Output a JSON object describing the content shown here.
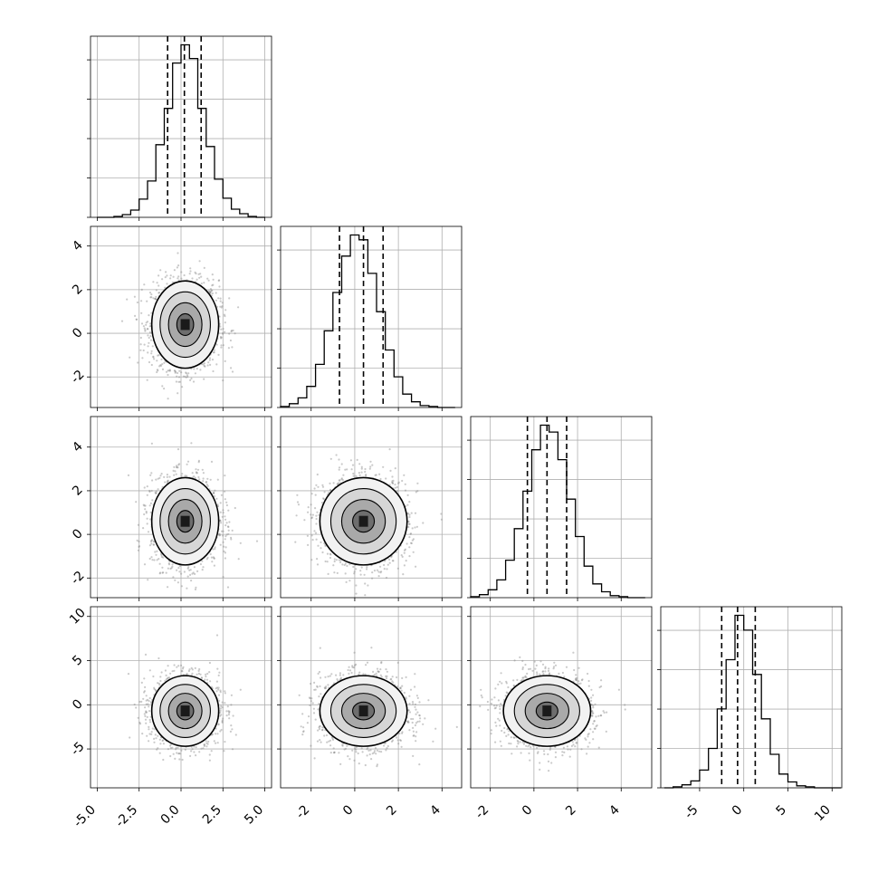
{
  "chart_data": {
    "type": "corner",
    "parameters": 4,
    "show_grid": true,
    "diag_quantile_lines": "dashed",
    "scatter_point_color": "#8a8a8a",
    "line_color": "#000000",
    "axes": [
      {
        "index": 0,
        "range": [
          -5.4,
          5.4
        ],
        "ticks": [
          "-5.0",
          "-2.5",
          "0.0",
          "2.5",
          "5.0"
        ],
        "tick_values": [
          -5,
          -2.5,
          0,
          2.5,
          5
        ]
      },
      {
        "index": 1,
        "range": [
          -3.4,
          4.9
        ],
        "ticks": [
          "-2",
          "0",
          "2",
          "4"
        ],
        "tick_values": [
          -2,
          0,
          2,
          4
        ]
      },
      {
        "index": 2,
        "range": [
          -2.9,
          5.4
        ],
        "ticks": [
          "-2",
          "0",
          "2",
          "4"
        ],
        "tick_values": [
          -2,
          0,
          2,
          4
        ]
      },
      {
        "index": 3,
        "range": [
          -9.4,
          11.1
        ],
        "ticks": [
          "-5",
          "0",
          "5",
          "10"
        ],
        "tick_values": [
          -5,
          0,
          5,
          10
        ]
      }
    ],
    "diag": [
      {
        "param": 0,
        "mean": 0.25,
        "sd": 1.0,
        "quantiles": [
          -0.8,
          0.2,
          1.2
        ],
        "hist_bins": [
          -5.0,
          -4.5,
          -4.0,
          -3.5,
          -3.0,
          -2.5,
          -2.0,
          -1.5,
          -1.0,
          -0.5,
          0.0,
          0.5,
          1.0,
          1.5,
          2.0,
          2.5,
          3.0,
          3.5,
          4.0,
          4.5,
          5.0
        ],
        "hist_counts": [
          0,
          0,
          1,
          3,
          8,
          20,
          40,
          80,
          120,
          170,
          190,
          175,
          120,
          78,
          42,
          21,
          9,
          4,
          1,
          0
        ]
      },
      {
        "param": 1,
        "mean": 0.4,
        "sd": 1.0,
        "quantiles": [
          -0.7,
          0.4,
          1.3
        ],
        "hist_bins": [
          -3.4,
          -3.0,
          -2.6,
          -2.2,
          -1.8,
          -1.4,
          -1.0,
          -0.6,
          -0.2,
          0.2,
          0.6,
          1.0,
          1.4,
          1.8,
          2.2,
          2.6,
          3.0,
          3.4,
          3.8,
          4.2,
          4.6
        ],
        "hist_counts": [
          1,
          4,
          10,
          22,
          45,
          80,
          120,
          158,
          180,
          175,
          140,
          100,
          60,
          32,
          14,
          6,
          2,
          1,
          0,
          0
        ]
      },
      {
        "param": 2,
        "mean": 0.6,
        "sd": 1.0,
        "quantiles": [
          -0.3,
          0.6,
          1.5
        ],
        "hist_bins": [
          -2.9,
          -2.5,
          -2.1,
          -1.7,
          -1.3,
          -0.9,
          -0.5,
          -0.1,
          0.3,
          0.7,
          1.1,
          1.5,
          1.9,
          2.3,
          2.7,
          3.1,
          3.5,
          3.9,
          4.3,
          4.7,
          5.1
        ],
        "hist_counts": [
          1,
          3,
          8,
          18,
          38,
          70,
          108,
          150,
          175,
          168,
          140,
          100,
          62,
          32,
          14,
          6,
          2,
          1,
          0,
          0
        ]
      },
      {
        "param": 3,
        "mean": -0.7,
        "sd": 2.0,
        "quantiles": [
          -2.5,
          -0.7,
          1.3
        ],
        "hist_bins": [
          -9.0,
          -8.0,
          -7.0,
          -6.0,
          -5.0,
          -4.0,
          -3.0,
          -2.0,
          -1.0,
          0.0,
          1.0,
          2.0,
          3.0,
          4.0,
          5.0,
          6.0,
          7.0,
          8.0,
          9.0,
          10.0,
          11.0
        ],
        "hist_counts": [
          0,
          1,
          3,
          7,
          18,
          40,
          80,
          130,
          175,
          160,
          115,
          70,
          34,
          14,
          6,
          2,
          1,
          0,
          0,
          0
        ]
      }
    ],
    "pairs": [
      {
        "x": 0,
        "y": 1
      },
      {
        "x": 0,
        "y": 2
      },
      {
        "x": 1,
        "y": 2
      },
      {
        "x": 0,
        "y": 3
      },
      {
        "x": 1,
        "y": 3
      },
      {
        "x": 2,
        "y": 3
      }
    ],
    "contour_levels_sigma": [
      0.5,
      1.0,
      1.5,
      2.0
    ]
  }
}
